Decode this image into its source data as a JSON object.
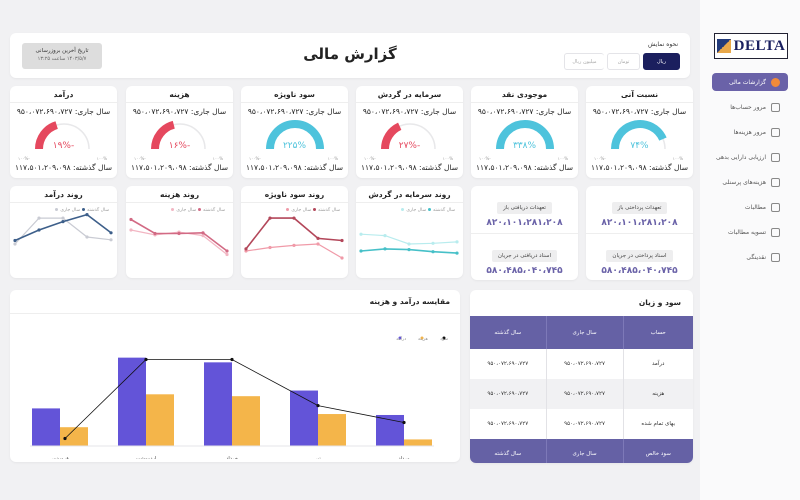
{
  "sidebar": {
    "logo": "DELTA",
    "items": [
      {
        "label": "گزارشات مالی",
        "icon": "report-icon",
        "active": true
      },
      {
        "label": "مرور حساب‌ها",
        "icon": "accounts-icon"
      },
      {
        "label": "مرور هزینه‌ها",
        "icon": "expenses-icon"
      },
      {
        "label": "ارزیابی دارایی بدهی",
        "icon": "assets-icon"
      },
      {
        "label": "هزینه‌های پرسنلی",
        "icon": "personnel-icon"
      },
      {
        "label": "مطالبات",
        "icon": "receivables-icon"
      },
      {
        "label": "تسویه مطالبات",
        "icon": "settlement-icon"
      },
      {
        "label": "نقدینگی",
        "icon": "cash-icon"
      }
    ]
  },
  "header": {
    "title": "گزارش مالی",
    "display_label": "نحوه نمایش",
    "units": [
      "ریال",
      "تومان",
      "میلیون ریال"
    ],
    "selected_unit": "ریال",
    "update_label": "تاریخ آخرین بروزرسانی",
    "update_value": "۱۴۰۳/۵/۷ ساعت ۱۳:۲۵"
  },
  "kpis": [
    {
      "title": "نسبت آنی",
      "current": "سال جاری: ۹۵۰،۰۷۲،۶۹۰،۷۲۷",
      "previous": "سال گذشته: ۱۱۷،۵۰۱،۲۰۹،۰۹۸",
      "percent": 74,
      "percent_label": "۷۴%"
    },
    {
      "title": "موجودی نقد",
      "current": "سال جاری: ۹۵۰،۰۷۲،۶۹۰،۷۲۷",
      "previous": "سال گذشته: ۱۱۷،۵۰۱،۲۰۹،۰۹۸",
      "percent": 338,
      "percent_label": "۳۳۸%"
    },
    {
      "title": "سرمایه در گردش",
      "current": "سال جاری: ۹۵۰،۰۷۲،۶۹۰،۷۲۷",
      "previous": "سال گذشته: ۱۱۷،۵۰۱،۲۰۹،۰۹۸",
      "percent": -27,
      "percent_label": "-۲۷%"
    },
    {
      "title": "سود ناویژه",
      "current": "سال جاری: ۹۵۰،۰۷۲،۶۹۰،۷۲۷",
      "previous": "سال گذشته: ۱۱۷،۵۰۱،۲۰۹،۰۹۸",
      "percent": 225,
      "percent_label": "۲۲۵%"
    },
    {
      "title": "هزینه",
      "current": "سال جاری: ۹۵۰،۰۷۲،۶۹۰،۷۲۷",
      "previous": "سال گذشته: ۱۱۷،۵۰۱،۲۰۹،۰۹۸",
      "percent": -16,
      "percent_label": "-۱۶%"
    },
    {
      "title": "درآمد",
      "current": "سال جاری: ۹۵۰،۰۷۲،۶۹۰،۷۲۷",
      "previous": "سال گذشته: ۱۱۷،۵۰۱،۲۰۹،۰۹۸",
      "percent": -19,
      "percent_label": "-۱۹%"
    }
  ],
  "gauge": {
    "min": "-۱۰۰%",
    "max": "۱۰۰%",
    "positive_color": "#4ec3dc",
    "negative_color": "#e5485e",
    "track_color": "#e8e8ea"
  },
  "trends": [
    {
      "title": "روند سرمایه در گردش",
      "legend": [
        "سال گذشته",
        "سال جاری"
      ],
      "colors": [
        "#46c0c8",
        "#b8ecee"
      ],
      "prev": [
        30,
        33,
        32,
        29,
        27
      ],
      "cur": [
        54,
        52,
        40,
        41,
        43
      ]
    },
    {
      "title": "روند سود ناویژه",
      "legend": [
        "سال گذشته",
        "سال جاری"
      ],
      "colors": [
        "#b3475a",
        "#f09aa8"
      ],
      "prev": [
        33,
        77,
        77,
        48,
        45
      ],
      "cur": [
        30,
        35,
        38,
        40,
        20
      ]
    },
    {
      "title": "روند هزینه",
      "legend": [
        "سال گذشته",
        "سال جاری"
      ],
      "colors": [
        "#d26a84",
        "#f2b6c3"
      ],
      "prev": [
        75,
        55,
        55,
        56,
        30
      ],
      "cur": [
        60,
        53,
        57,
        52,
        25
      ]
    },
    {
      "title": "روند درآمد",
      "legend": [
        "سال گذشته",
        "سال جاری"
      ],
      "colors": [
        "#3d5f8a",
        "#c9cbd3"
      ],
      "prev": [
        45,
        60,
        72,
        82,
        56
      ],
      "cur": [
        40,
        77,
        77,
        50,
        46
      ]
    }
  ],
  "commitments": [
    {
      "items": [
        {
          "label": "تعهدات پرداختی باز",
          "value": "۸۲۰،۱۰۱،۲۸۱،۲۰۸"
        },
        {
          "label": "اسناد پرداختی در جریان",
          "value": "۵۸۰،۴۸۵،۰۴۰،۷۴۵"
        }
      ]
    },
    {
      "items": [
        {
          "label": "تعهدات دریافتی باز",
          "value": "۸۲۰،۱۰۱،۲۸۱،۲۰۸"
        },
        {
          "label": "اسناد دریافتی در جریان",
          "value": "۵۸۰،۴۸۵،۰۴۰،۷۴۵"
        }
      ]
    }
  ],
  "profit_loss": {
    "title": "سود و زیان",
    "headers": [
      "حساب",
      "سال جاری",
      "سال گذشته"
    ],
    "rows": [
      [
        "درآمد",
        "۹۵۰،۰۷۲،۶۹۰،۷۲۷",
        "۹۵۰،۰۷۲،۶۹۰،۷۲۷"
      ],
      [
        "هزینه",
        "۹۵۰،۰۷۲،۶۹۰،۷۲۷",
        "۹۵۰،۰۷۲،۶۹۰،۷۲۷"
      ],
      [
        "بهای تمام شده",
        "۹۵۰،۰۷۲،۶۹۰،۷۲۷",
        "۹۵۰،۰۷۲،۶۹۰،۷۲۷"
      ]
    ],
    "footer": [
      "سود خالص",
      "سال جاری",
      "سال گذشته"
    ]
  },
  "chart_data": {
    "type": "bar",
    "title": "مقایسه درآمد و هزینه",
    "categories": [
      "فروردین",
      "اردیبهشت",
      "خرداد",
      "تیر",
      "مرداد"
    ],
    "series": [
      {
        "name": "درآمد",
        "type": "bar",
        "color": "#6354d8",
        "values": [
          40,
          94,
          89,
          59,
          33
        ]
      },
      {
        "name": "هزینه",
        "type": "bar",
        "color": "#f4b54a",
        "values": [
          20,
          55,
          53,
          34,
          7
        ]
      },
      {
        "name": "سود",
        "type": "line",
        "color": "#111111",
        "values": [
          8,
          92,
          92,
          43,
          25
        ]
      }
    ],
    "legend_order": [
      "سود",
      "هزینه",
      "درآمد"
    ],
    "legend_position": "top-right",
    "grid": false,
    "ylim": [
      0,
      100
    ]
  }
}
